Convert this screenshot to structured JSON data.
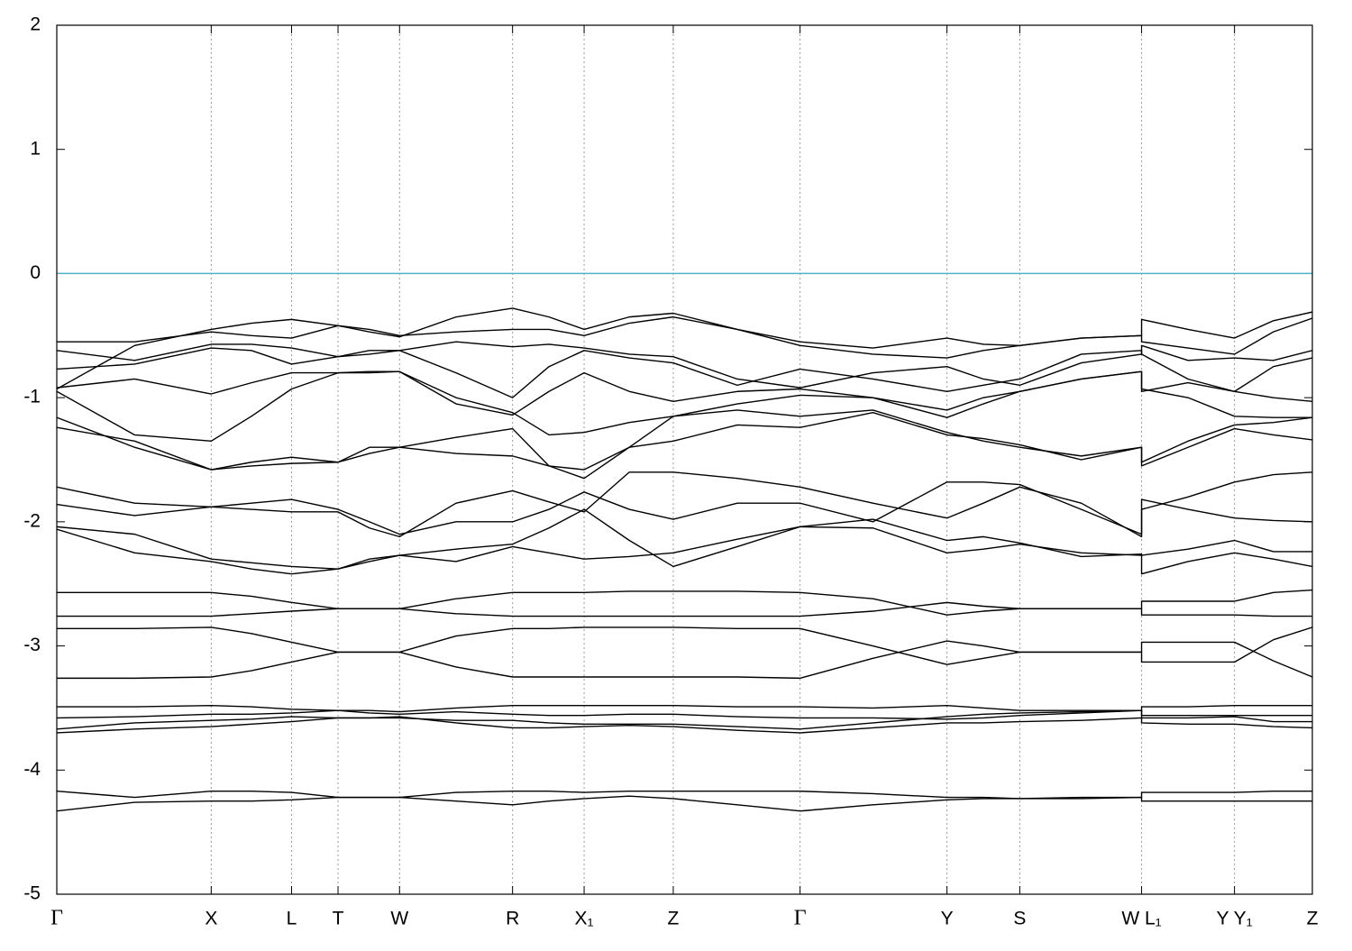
{
  "chart_data": {
    "type": "line",
    "line_color": "#000000",
    "grid": true,
    "grid_axis": "x",
    "hlines": [
      {
        "value": 0,
        "color": "#4fb3c8"
      }
    ],
    "xlim": [
      0,
      1
    ],
    "xticks": [
      {
        "value": 0,
        "label": "Γ"
      },
      {
        "value": 0.123,
        "label": "X"
      },
      {
        "value": 0.187,
        "label": "L"
      },
      {
        "value": 0.224,
        "label": "T"
      },
      {
        "value": 0.273,
        "label": "W"
      },
      {
        "value": 0.363,
        "label": "R"
      },
      {
        "value": 0.42,
        "label": "X₁"
      },
      {
        "value": 0.491,
        "label": "Z"
      },
      {
        "value": 0.592,
        "label": "Γ"
      },
      {
        "value": 0.709,
        "label": "Y"
      },
      {
        "value": 0.767,
        "label": "S"
      },
      {
        "value": 0.864,
        "label": "W L₁"
      },
      {
        "value": 0.938,
        "label": "Y Y₁"
      },
      {
        "value": 1,
        "label": "Z"
      }
    ],
    "ylim": [
      -5,
      2
    ],
    "yticks": [
      -5,
      -4,
      -3,
      -2,
      -1,
      0,
      1,
      2
    ],
    "x": [
      0,
      0.062,
      0.123,
      0.155,
      0.187,
      0.224,
      0.249,
      0.273,
      0.318,
      0.363,
      0.392,
      0.42,
      0.456,
      0.491,
      0.542,
      0.592,
      0.65,
      0.709,
      0.738,
      0.767,
      0.816,
      0.864,
      0.864,
      0.901,
      0.938,
      0.969,
      1
    ],
    "series": [
      {
        "values": [
          -4.33,
          -4.26,
          -4.25,
          -4.25,
          -4.24,
          -4.22,
          -4.22,
          -4.22,
          -4.25,
          -4.28,
          -4.25,
          -4.23,
          -4.21,
          -4.23,
          -4.28,
          -4.33,
          -4.28,
          -4.24,
          -4.23,
          -4.23,
          -4.23,
          -4.22,
          -4.25,
          -4.25,
          -4.25,
          -4.25,
          -4.25
        ]
      },
      {
        "values": [
          -4.17,
          -4.22,
          -4.17,
          -4.17,
          -4.18,
          -4.22,
          -4.22,
          -4.22,
          -4.18,
          -4.17,
          -4.17,
          -4.18,
          -4.17,
          -4.17,
          -4.17,
          -4.17,
          -4.19,
          -4.22,
          -4.22,
          -4.23,
          -4.22,
          -4.22,
          -4.18,
          -4.18,
          -4.18,
          -4.17,
          -4.17
        ]
      },
      {
        "values": [
          -3.7,
          -3.67,
          -3.65,
          -3.63,
          -3.61,
          -3.58,
          -3.58,
          -3.57,
          -3.62,
          -3.66,
          -3.66,
          -3.65,
          -3.64,
          -3.65,
          -3.68,
          -3.7,
          -3.66,
          -3.62,
          -3.62,
          -3.61,
          -3.6,
          -3.58,
          -3.62,
          -3.63,
          -3.63,
          -3.65,
          -3.66
        ]
      },
      {
        "values": [
          -3.67,
          -3.62,
          -3.6,
          -3.59,
          -3.57,
          -3.58,
          -3.58,
          -3.58,
          -3.6,
          -3.6,
          -3.62,
          -3.63,
          -3.63,
          -3.63,
          -3.65,
          -3.67,
          -3.62,
          -3.57,
          -3.55,
          -3.54,
          -3.53,
          -3.52,
          -3.58,
          -3.58,
          -3.57,
          -3.61,
          -3.61
        ]
      },
      {
        "values": [
          -3.58,
          -3.57,
          -3.55,
          -3.55,
          -3.54,
          -3.52,
          -3.54,
          -3.55,
          -3.53,
          -3.55,
          -3.56,
          -3.56,
          -3.55,
          -3.55,
          -3.57,
          -3.58,
          -3.58,
          -3.59,
          -3.58,
          -3.56,
          -3.54,
          -3.52,
          -3.56,
          -3.56,
          -3.56,
          -3.56,
          -3.56
        ]
      },
      {
        "values": [
          -3.49,
          -3.49,
          -3.48,
          -3.49,
          -3.51,
          -3.52,
          -3.52,
          -3.53,
          -3.5,
          -3.48,
          -3.48,
          -3.48,
          -3.48,
          -3.48,
          -3.49,
          -3.49,
          -3.5,
          -3.48,
          -3.5,
          -3.52,
          -3.52,
          -3.52,
          -3.49,
          -3.49,
          -3.48,
          -3.48,
          -3.48
        ]
      },
      {
        "values": [
          -3.26,
          -3.26,
          -3.25,
          -3.2,
          -3.13,
          -3.05,
          -3.05,
          -3.05,
          -3.17,
          -3.25,
          -3.25,
          -3.25,
          -3.25,
          -3.25,
          -3.25,
          -3.26,
          -3.1,
          -2.96,
          -3.0,
          -3.05,
          -3.05,
          -3.05,
          -2.97,
          -2.97,
          -2.97,
          -3.12,
          -3.25
        ]
      },
      {
        "values": [
          -2.86,
          -2.86,
          -2.85,
          -2.9,
          -2.97,
          -3.05,
          -3.05,
          -3.05,
          -2.92,
          -2.86,
          -2.86,
          -2.85,
          -2.85,
          -2.85,
          -2.86,
          -2.86,
          -3.0,
          -3.15,
          -3.1,
          -3.05,
          -3.05,
          -3.05,
          -3.13,
          -3.13,
          -3.13,
          -2.95,
          -2.85
        ]
      },
      {
        "values": [
          -2.76,
          -2.76,
          -2.76,
          -2.74,
          -2.72,
          -2.7,
          -2.7,
          -2.7,
          -2.74,
          -2.76,
          -2.76,
          -2.76,
          -2.76,
          -2.76,
          -2.76,
          -2.76,
          -2.72,
          -2.65,
          -2.68,
          -2.7,
          -2.7,
          -2.7,
          -2.75,
          -2.75,
          -2.75,
          -2.76,
          -2.76
        ]
      },
      {
        "values": [
          -2.57,
          -2.57,
          -2.57,
          -2.6,
          -2.65,
          -2.7,
          -2.7,
          -2.7,
          -2.62,
          -2.57,
          -2.57,
          -2.57,
          -2.56,
          -2.56,
          -2.56,
          -2.57,
          -2.62,
          -2.75,
          -2.72,
          -2.7,
          -2.7,
          -2.7,
          -2.64,
          -2.64,
          -2.64,
          -2.57,
          -2.55
        ]
      },
      {
        "values": [
          -2.06,
          -2.25,
          -2.32,
          -2.38,
          -2.42,
          -2.38,
          -2.32,
          -2.27,
          -2.22,
          -2.18,
          -2.05,
          -1.9,
          -2.15,
          -2.36,
          -2.2,
          -2.04,
          -2.05,
          -2.25,
          -2.22,
          -2.18,
          -2.25,
          -2.27,
          -2.42,
          -2.32,
          -2.25,
          -2.3,
          -2.36
        ]
      },
      {
        "values": [
          -2.04,
          -2.1,
          -2.3,
          -2.33,
          -2.36,
          -2.38,
          -2.3,
          -2.27,
          -2.32,
          -2.2,
          -2.25,
          -2.3,
          -2.28,
          -2.25,
          -2.14,
          -2.04,
          -1.98,
          -2.15,
          -2.12,
          -2.17,
          -2.28,
          -2.26,
          -2.27,
          -2.22,
          -2.15,
          -2.24,
          -2.24
        ]
      },
      {
        "values": [
          -1.86,
          -1.95,
          -1.88,
          -1.9,
          -1.92,
          -1.92,
          -2.05,
          -2.12,
          -1.85,
          -1.75,
          -1.84,
          -1.92,
          -1.6,
          -1.6,
          -1.65,
          -1.72,
          -1.85,
          -1.97,
          -1.85,
          -1.72,
          -1.85,
          -2.12,
          -1.9,
          -1.8,
          -1.68,
          -1.62,
          -1.6
        ]
      },
      {
        "values": [
          -1.72,
          -1.85,
          -1.88,
          -1.85,
          -1.82,
          -1.9,
          -2.0,
          -2.1,
          -2.0,
          -2.0,
          -1.9,
          -1.76,
          -1.9,
          -1.98,
          -1.85,
          -1.85,
          -2.0,
          -1.68,
          -1.68,
          -1.7,
          -1.9,
          -2.1,
          -1.82,
          -1.9,
          -1.97,
          -1.99,
          -2.0
        ]
      },
      {
        "values": [
          -1.24,
          -1.35,
          -1.58,
          -1.52,
          -1.48,
          -1.52,
          -1.45,
          -1.4,
          -1.45,
          -1.47,
          -1.55,
          -1.58,
          -1.4,
          -1.35,
          -1.22,
          -1.24,
          -1.12,
          -1.3,
          -1.33,
          -1.38,
          -1.5,
          -1.4,
          -1.55,
          -1.4,
          -1.25,
          -1.3,
          -1.34
        ]
      },
      {
        "values": [
          -1.16,
          -1.4,
          -1.58,
          -1.55,
          -1.53,
          -1.52,
          -1.4,
          -1.4,
          -1.32,
          -1.25,
          -1.55,
          -1.65,
          -1.4,
          -1.15,
          -1.1,
          -1.15,
          -1.1,
          -1.28,
          -1.35,
          -1.4,
          -1.47,
          -1.4,
          -1.52,
          -1.35,
          -1.22,
          -1.2,
          -1.16
        ]
      },
      {
        "values": [
          -0.95,
          -1.3,
          -1.35,
          -1.15,
          -0.93,
          -0.8,
          -0.8,
          -0.79,
          -1.0,
          -1.12,
          -1.3,
          -1.28,
          -1.2,
          -1.15,
          -1.05,
          -0.98,
          -1.0,
          -1.16,
          -1.05,
          -0.95,
          -0.85,
          -0.79,
          -0.93,
          -1.0,
          -1.15,
          -1.16,
          -1.16
        ]
      },
      {
        "values": [
          -0.92,
          -0.85,
          -0.97,
          -0.88,
          -0.8,
          -0.8,
          -0.79,
          -0.79,
          -1.05,
          -1.14,
          -0.95,
          -0.8,
          -0.95,
          -1.03,
          -0.95,
          -0.93,
          -1.0,
          -1.1,
          -1.0,
          -0.95,
          -0.85,
          -0.79,
          -0.95,
          -0.88,
          -0.95,
          -1.0,
          -1.03
        ]
      },
      {
        "values": [
          -0.77,
          -0.73,
          -0.6,
          -0.62,
          -0.73,
          -0.67,
          -0.62,
          -0.62,
          -0.8,
          -1.0,
          -0.75,
          -0.62,
          -0.68,
          -0.72,
          -0.9,
          -0.77,
          -0.85,
          -0.95,
          -0.9,
          -0.85,
          -0.65,
          -0.62,
          -0.65,
          -0.85,
          -0.95,
          -0.75,
          -0.68
        ]
      },
      {
        "values": [
          -0.62,
          -0.7,
          -0.57,
          -0.57,
          -0.6,
          -0.67,
          -0.65,
          -0.62,
          -0.55,
          -0.59,
          -0.57,
          -0.6,
          -0.65,
          -0.67,
          -0.85,
          -0.92,
          -0.8,
          -0.75,
          -0.85,
          -0.9,
          -0.72,
          -0.65,
          -0.58,
          -0.7,
          -0.68,
          -0.7,
          -0.62
        ]
      },
      {
        "values": [
          -0.55,
          -0.55,
          -0.47,
          -0.5,
          -0.52,
          -0.42,
          -0.45,
          -0.5,
          -0.47,
          -0.45,
          -0.45,
          -0.5,
          -0.4,
          -0.35,
          -0.45,
          -0.58,
          -0.65,
          -0.68,
          -0.62,
          -0.58,
          -0.52,
          -0.5,
          -0.55,
          -0.6,
          -0.65,
          -0.47,
          -0.36
        ]
      },
      {
        "values": [
          -0.93,
          -0.58,
          -0.45,
          -0.4,
          -0.37,
          -0.42,
          -0.47,
          -0.51,
          -0.35,
          -0.28,
          -0.35,
          -0.45,
          -0.35,
          -0.32,
          -0.45,
          -0.55,
          -0.6,
          -0.52,
          -0.57,
          -0.58,
          -0.52,
          -0.5,
          -0.37,
          -0.45,
          -0.52,
          -0.38,
          -0.31
        ]
      }
    ]
  }
}
